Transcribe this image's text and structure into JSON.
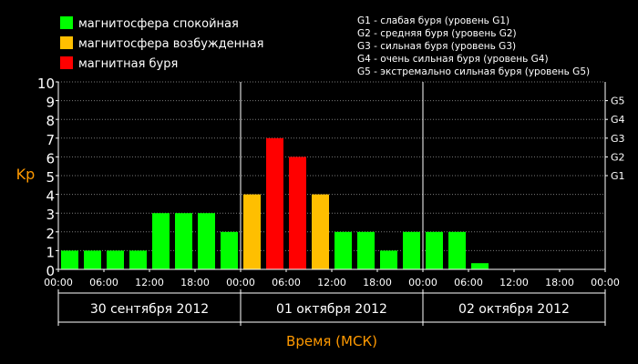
{
  "legend": {
    "items": [
      {
        "label": "магнитосфера спокойная",
        "color": "#00ff00"
      },
      {
        "label": "магнитосфера возбужденная",
        "color": "#ffbf00"
      },
      {
        "label": "магнитная буря",
        "color": "#ff0000"
      }
    ],
    "storm_levels": [
      "G1 - слабая буря (уровень G1)",
      "G2 - средняя буря (уровень G2)",
      "G3 - сильная буря (уровень G3)",
      "G4 - очень сильная буря (уровень G4)",
      "G5 - экстремально сильная буря (уровень G5)"
    ]
  },
  "chart_data": {
    "type": "bar",
    "title": "",
    "ylabel": "Kp",
    "xlabel": "Время (МСК)",
    "ylim": [
      0,
      10
    ],
    "yticks": [
      0,
      1,
      2,
      3,
      4,
      5,
      6,
      7,
      8,
      9,
      10
    ],
    "right_axis_labels": [
      {
        "label": "G1",
        "kp": 5
      },
      {
        "label": "G2",
        "kp": 6
      },
      {
        "label": "G3",
        "kp": 7
      },
      {
        "label": "G4",
        "kp": 8
      },
      {
        "label": "G5",
        "kp": 9
      }
    ],
    "x_tick_labels": [
      "00:00",
      "06:00",
      "12:00",
      "18:00",
      "00:00",
      "06:00",
      "12:00",
      "18:00",
      "00:00",
      "06:00",
      "12:00",
      "18:00",
      "00:00"
    ],
    "days": [
      "30 сентября 2012",
      "01 октября 2012",
      "02 октября 2012"
    ],
    "interval_hours": 3,
    "values": [
      1,
      1,
      1,
      1,
      3,
      3,
      3,
      2,
      4,
      7,
      6,
      4,
      2,
      2,
      1,
      2,
      2,
      2,
      0.33
    ],
    "colors": {
      "quiet": "#00ff00",
      "active": "#ffbf00",
      "storm": "#ff0000"
    },
    "grid": true,
    "axis_color": "#ff9900"
  }
}
